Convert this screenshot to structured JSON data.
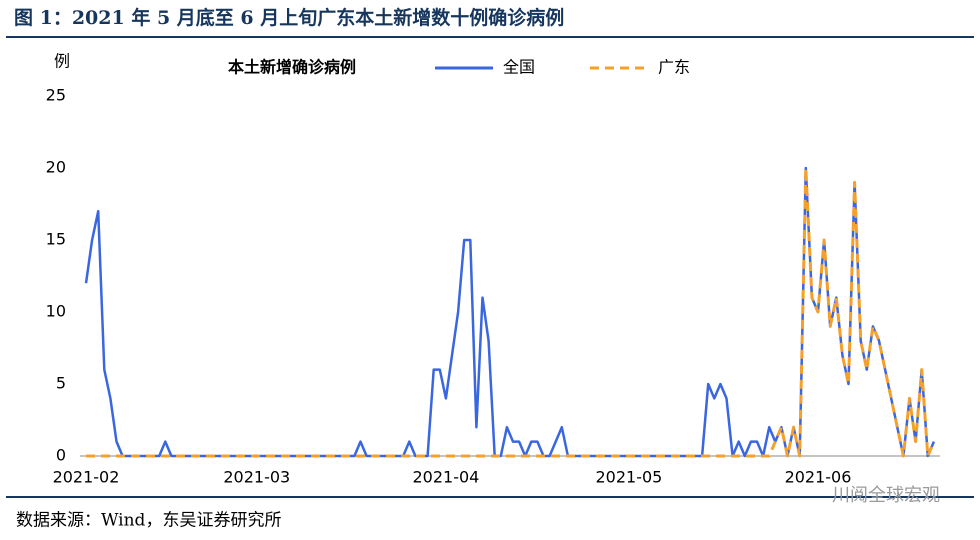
{
  "chart_data": {
    "type": "line",
    "title": "图 1：2021 年 5 月底至 6 月上旬广东本土新增数十例确诊病例",
    "y_unit": "例",
    "legend_title": "本土新增确诊病例",
    "source": "数据来源：Wind，东吴证券研究所",
    "watermark": "川阅全球宏观",
    "categories": [
      "2021-02",
      null,
      null,
      null,
      null,
      null,
      null,
      null,
      null,
      null,
      null,
      null,
      null,
      null,
      null,
      null,
      null,
      null,
      null,
      null,
      null,
      null,
      null,
      null,
      null,
      null,
      null,
      null,
      "2021-03",
      null,
      null,
      null,
      null,
      null,
      null,
      null,
      null,
      null,
      null,
      null,
      null,
      null,
      null,
      null,
      null,
      null,
      null,
      null,
      null,
      null,
      null,
      null,
      null,
      null,
      null,
      null,
      null,
      null,
      null,
      "2021-04",
      null,
      null,
      null,
      null,
      null,
      null,
      null,
      null,
      null,
      null,
      null,
      null,
      null,
      null,
      null,
      null,
      null,
      null,
      null,
      null,
      null,
      null,
      null,
      null,
      null,
      null,
      null,
      null,
      null,
      "2021-05",
      null,
      null,
      null,
      null,
      null,
      null,
      null,
      null,
      null,
      null,
      null,
      null,
      null,
      null,
      null,
      null,
      null,
      null,
      null,
      null,
      null,
      null,
      null,
      null,
      null,
      null,
      null,
      null,
      null,
      null,
      "2021-06",
      null,
      null,
      null,
      null,
      null,
      null,
      null,
      null,
      null,
      null,
      null,
      null,
      null,
      null,
      null,
      null,
      null,
      null,
      null
    ],
    "series": [
      {
        "name": "全国",
        "color": "#3a66e0",
        "line_style": "solid",
        "values": [
          12,
          15,
          17,
          6,
          4,
          1,
          0,
          0,
          0,
          0,
          0,
          0,
          0,
          1,
          0,
          0,
          0,
          0,
          0,
          0,
          0,
          0,
          0,
          0,
          0,
          0,
          0,
          0,
          0,
          0,
          0,
          0,
          0,
          0,
          0,
          0,
          0,
          0,
          0,
          0,
          0,
          0,
          0,
          0,
          0,
          1,
          0,
          0,
          0,
          0,
          0,
          0,
          0,
          1,
          0,
          0,
          0,
          6,
          6,
          4,
          7,
          10,
          15,
          15,
          2,
          11,
          8,
          0,
          0,
          2,
          1,
          1,
          0,
          1,
          1,
          0,
          0,
          1,
          2,
          0,
          0,
          0,
          0,
          0,
          0,
          0,
          0,
          0,
          0,
          0,
          0,
          0,
          0,
          0,
          0,
          0,
          0,
          0,
          0,
          0,
          0,
          0,
          5,
          4,
          5,
          4,
          0,
          1,
          0,
          1,
          1,
          0,
          2,
          1,
          2,
          0,
          2,
          0,
          20,
          11,
          10,
          15,
          9,
          11,
          7,
          5,
          19,
          8,
          6,
          9,
          8,
          6,
          4,
          2,
          0,
          4,
          1,
          6,
          0,
          1
        ]
      },
      {
        "name": "广东",
        "color": "#f5a02a",
        "line_style": "dashed",
        "values": [
          0,
          0,
          0,
          0,
          0,
          0,
          0,
          0,
          0,
          0,
          0,
          0,
          0,
          0,
          0,
          0,
          0,
          0,
          0,
          0,
          0,
          0,
          0,
          0,
          0,
          0,
          0,
          0,
          0,
          0,
          0,
          0,
          0,
          0,
          0,
          0,
          0,
          0,
          0,
          0,
          0,
          0,
          0,
          0,
          0,
          0,
          0,
          0,
          0,
          0,
          0,
          0,
          0,
          0,
          0,
          0,
          0,
          0,
          0,
          0,
          0,
          0,
          0,
          0,
          0,
          0,
          0,
          0,
          0,
          0,
          0,
          0,
          0,
          0,
          0,
          0,
          0,
          0,
          0,
          0,
          0,
          0,
          0,
          0,
          0,
          0,
          0,
          0,
          0,
          0,
          0,
          0,
          0,
          0,
          0,
          0,
          0,
          0,
          0,
          0,
          0,
          0,
          0,
          0,
          0,
          0,
          0,
          0,
          0,
          0,
          0,
          0,
          0,
          1,
          2,
          0,
          2,
          0,
          20,
          11,
          10,
          15,
          9,
          11,
          7,
          5,
          19,
          8,
          6,
          9,
          8,
          6,
          4,
          2,
          0,
          4,
          1,
          6,
          0,
          1
        ]
      }
    ],
    "ylim": [
      0,
      25
    ],
    "yticks": [
      0,
      5,
      10,
      15,
      20,
      25
    ],
    "grid": false
  }
}
